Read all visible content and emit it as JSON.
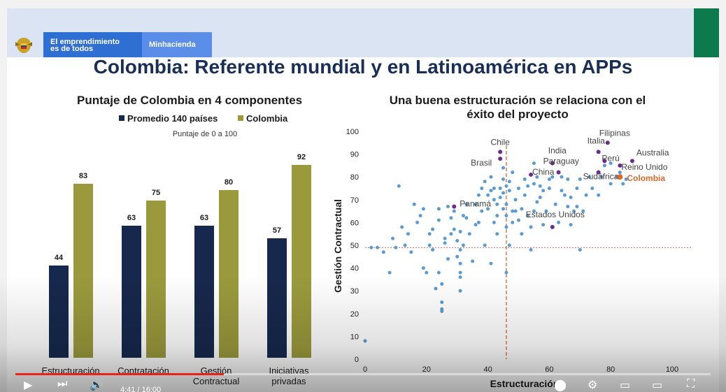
{
  "header": {
    "brand_line1": "El emprendimiento",
    "brand_line2": "es de todos",
    "ministry": "Minhacienda"
  },
  "slide_title": "Colombia: Referente mundial y en Latinoamérica en APPs",
  "bar_chart_title": "Puntaje de Colombia en 4 componentes",
  "scatter_title_line1": "Una buena estructuración se relaciona con el",
  "scatter_title_line2": "éxito del proyecto",
  "colors": {
    "navy": "#16284c",
    "olive": "#9a9a3c",
    "dots": "#5b9bd0",
    "purple": "#6b2d8a",
    "colombia": "#d9692a",
    "accent_red": "#e8231b"
  },
  "chart_data": [
    {
      "type": "bar",
      "title": "Puntaje de Colombia en 4 componentes",
      "subtitle": "Puntaje de 0 a 100",
      "categories": [
        "Estructuración",
        "Contratación",
        "Gestión Contractual",
        "Iniciativas privadas"
      ],
      "category_lines": [
        [
          "Estructuración"
        ],
        [
          "Contratación"
        ],
        [
          "Gestión",
          "Contractual"
        ],
        [
          "Iniciativas",
          "privadas"
        ]
      ],
      "series": [
        {
          "name": "Promedio 140 países",
          "color": "#16284c",
          "values": [
            44,
            63,
            63,
            57
          ]
        },
        {
          "name": "Colombia",
          "color": "#9a9a3c",
          "values": [
            83,
            75,
            80,
            92
          ]
        }
      ],
      "legend": "top",
      "ylim": [
        0,
        100
      ]
    },
    {
      "type": "scatter",
      "title": "Una buena estructuración se relaciona con el éxito del proyecto",
      "xlabel": "Estructuración",
      "ylabel": "Gestión Contractual",
      "xlim": [
        0,
        100
      ],
      "ylim": [
        0,
        100
      ],
      "xticks": [
        0,
        20,
        40,
        60,
        80,
        100
      ],
      "yticks": [
        0,
        10,
        20,
        30,
        40,
        50,
        60,
        70,
        80,
        90,
        100
      ],
      "reference_lines": {
        "x": 46,
        "y": 49
      },
      "highlighted": [
        {
          "label": "Chile",
          "x": 44,
          "y": 91,
          "color": "#6b2d8a"
        },
        {
          "label": "Brasil",
          "x": 44,
          "y": 88,
          "color": "#6b2d8a"
        },
        {
          "label": "India",
          "x": 61,
          "y": 86,
          "color": "#6b2d8a"
        },
        {
          "label": "Paraguay",
          "x": 63,
          "y": 82,
          "color": "#6b2d8a"
        },
        {
          "label": "Italia",
          "x": 76,
          "y": 91,
          "color": "#6b2d8a"
        },
        {
          "label": "Filipinas",
          "x": 79,
          "y": 95,
          "color": "#6b2d8a"
        },
        {
          "label": "Perú",
          "x": 78,
          "y": 87,
          "color": "#6b2d8a"
        },
        {
          "label": "Australia",
          "x": 87,
          "y": 87,
          "color": "#6b2d8a"
        },
        {
          "label": "Reino Unido",
          "x": 83,
          "y": 85,
          "color": "#6b2d8a"
        },
        {
          "label": "China",
          "x": 54,
          "y": 81,
          "color": "#6b2d8a"
        },
        {
          "label": "Sudáfrica",
          "x": 76,
          "y": 82,
          "color": "#6b2d8a"
        },
        {
          "label": "Panamá",
          "x": 29,
          "y": 67,
          "color": "#6b2d8a"
        },
        {
          "label": "Estados Unidos",
          "x": 61,
          "y": 58,
          "color": "#6b2d8a"
        },
        {
          "label": "Colombia",
          "x": 83,
          "y": 80,
          "color": "#d9692a"
        }
      ],
      "points": [
        [
          0,
          8
        ],
        [
          2,
          49
        ],
        [
          4,
          49
        ],
        [
          6,
          47
        ],
        [
          8,
          38
        ],
        [
          9,
          53
        ],
        [
          10,
          49
        ],
        [
          11,
          76
        ],
        [
          12,
          58
        ],
        [
          13,
          50
        ],
        [
          14,
          55
        ],
        [
          15,
          47
        ],
        [
          16,
          68
        ],
        [
          17,
          60
        ],
        [
          18,
          63
        ],
        [
          19,
          66
        ],
        [
          19,
          40
        ],
        [
          20,
          38
        ],
        [
          21,
          50
        ],
        [
          21,
          55
        ],
        [
          22,
          57
        ],
        [
          22,
          48
        ],
        [
          23,
          31
        ],
        [
          24,
          61
        ],
        [
          24,
          66
        ],
        [
          24,
          38
        ],
        [
          25,
          33
        ],
        [
          25,
          22
        ],
        [
          25,
          21
        ],
        [
          25,
          25
        ],
        [
          26,
          51
        ],
        [
          26,
          53
        ],
        [
          27,
          67
        ],
        [
          27,
          44
        ],
        [
          28,
          62
        ],
        [
          28,
          55
        ],
        [
          29,
          57
        ],
        [
          29,
          65
        ],
        [
          30,
          52
        ],
        [
          30,
          45
        ],
        [
          31,
          42
        ],
        [
          31,
          48
        ],
        [
          31,
          56
        ],
        [
          31,
          38
        ],
        [
          31,
          36
        ],
        [
          31,
          30
        ],
        [
          32,
          63
        ],
        [
          32,
          50
        ],
        [
          33,
          62
        ],
        [
          33,
          68
        ],
        [
          34,
          55
        ],
        [
          35,
          43
        ],
        [
          36,
          59
        ],
        [
          36,
          68
        ],
        [
          37,
          72
        ],
        [
          37,
          60
        ],
        [
          38,
          65
        ],
        [
          38,
          75
        ],
        [
          39,
          50
        ],
        [
          39,
          78
        ],
        [
          40,
          66
        ],
        [
          40,
          72
        ],
        [
          41,
          80
        ],
        [
          41,
          74
        ],
        [
          41,
          42
        ],
        [
          42,
          60
        ],
        [
          42,
          75
        ],
        [
          42,
          70
        ],
        [
          43,
          55
        ],
        [
          43,
          63
        ],
        [
          43,
          68
        ],
        [
          44,
          75
        ],
        [
          44,
          71
        ],
        [
          45,
          66
        ],
        [
          45,
          73
        ],
        [
          45,
          79
        ],
        [
          45,
          84
        ],
        [
          46,
          58
        ],
        [
          46,
          63
        ],
        [
          46,
          68
        ],
        [
          46,
          76
        ],
        [
          46,
          38
        ],
        [
          47,
          50
        ],
        [
          47,
          74
        ],
        [
          47,
          78
        ],
        [
          48,
          82
        ],
        [
          48,
          65
        ],
        [
          48,
          60
        ],
        [
          49,
          70
        ],
        [
          49,
          65
        ],
        [
          50,
          75
        ],
        [
          50,
          61
        ],
        [
          51,
          66
        ],
        [
          51,
          55
        ],
        [
          52,
          79
        ],
        [
          52,
          72
        ],
        [
          53,
          76
        ],
        [
          53,
          63
        ],
        [
          54,
          58
        ],
        [
          54,
          48
        ],
        [
          55,
          77
        ],
        [
          55,
          86
        ],
        [
          55,
          65
        ],
        [
          56,
          80
        ],
        [
          56,
          69
        ],
        [
          57,
          71
        ],
        [
          57,
          76
        ],
        [
          58,
          74
        ],
        [
          58,
          59
        ],
        [
          59,
          65
        ],
        [
          60,
          75
        ],
        [
          60,
          79
        ],
        [
          61,
          80
        ],
        [
          62,
          68
        ],
        [
          63,
          60
        ],
        [
          64,
          74
        ],
        [
          64,
          80
        ],
        [
          65,
          72
        ],
        [
          66,
          67
        ],
        [
          66,
          79
        ],
        [
          67,
          71
        ],
        [
          67,
          59
        ],
        [
          68,
          65
        ],
        [
          69,
          67
        ],
        [
          69,
          75
        ],
        [
          70,
          79
        ],
        [
          70,
          48
        ],
        [
          71,
          65
        ],
        [
          72,
          72
        ],
        [
          73,
          80
        ],
        [
          74,
          75
        ],
        [
          76,
          72
        ],
        [
          77,
          80
        ],
        [
          78,
          85
        ],
        [
          80,
          86
        ],
        [
          80,
          77
        ],
        [
          82,
          80
        ],
        [
          83,
          82
        ],
        [
          84,
          77
        ],
        [
          85,
          79
        ]
      ]
    }
  ],
  "player": {
    "time_display": "4:41 / 16:00",
    "progress_fraction": 0.3
  }
}
